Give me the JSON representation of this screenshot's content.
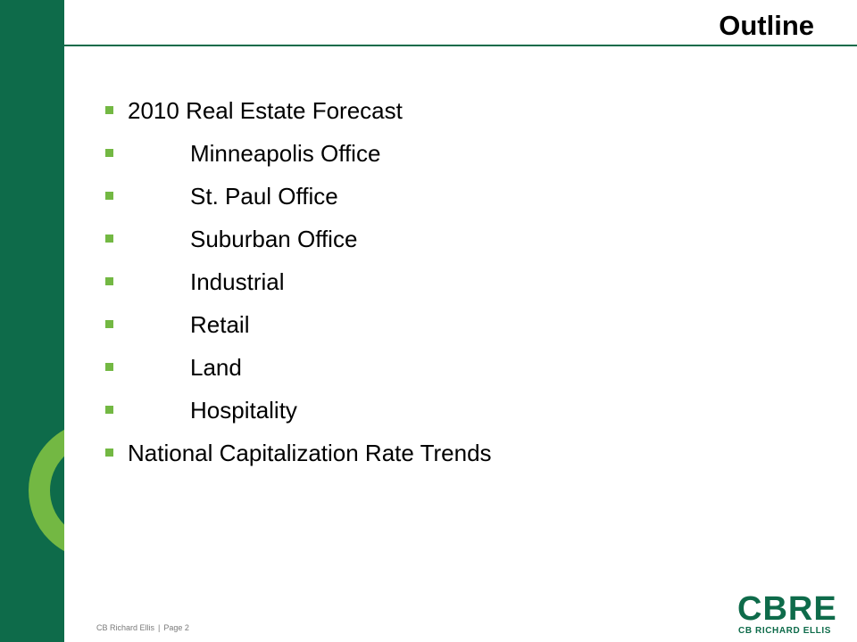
{
  "slide": {
    "title": "Outline",
    "items": [
      {
        "label": "2010 Real Estate Forecast",
        "level": 0
      },
      {
        "label": "Minneapolis Office",
        "level": 1
      },
      {
        "label": "St. Paul Office",
        "level": 1
      },
      {
        "label": "Suburban Office",
        "level": 1
      },
      {
        "label": "Industrial",
        "level": 1
      },
      {
        "label": "Retail",
        "level": 1
      },
      {
        "label": "Land",
        "level": 1
      },
      {
        "label": "Hospitality",
        "level": 1
      },
      {
        "label": "National Capitalization Rate Trends",
        "level": 0
      }
    ]
  },
  "footer": {
    "company": "CB Richard Ellis",
    "separator": "|",
    "page": "Page 2"
  },
  "logo": {
    "mark": "CBRE",
    "subtext": "CB RICHARD ELLIS"
  },
  "colors": {
    "brand_green": "#0e6b4a",
    "accent_lime": "#73b843"
  }
}
